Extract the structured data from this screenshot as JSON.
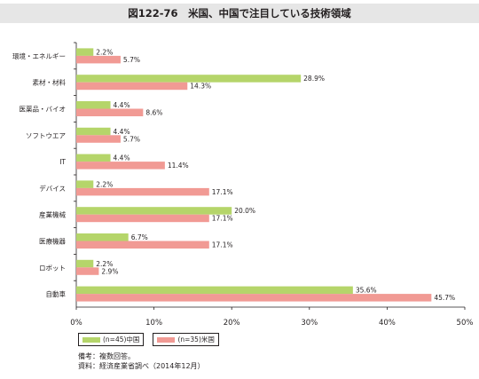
{
  "title": "図122-76　米国、中国で注目している技術領域",
  "chart_data": {
    "type": "bar",
    "orientation": "horizontal",
    "categories": [
      "環境・エネルギー",
      "素材・材料",
      "医薬品・バイオ",
      "ソフトウエア",
      "IT",
      "デバイス",
      "産業機械",
      "医療機器",
      "ロボット",
      "自動車"
    ],
    "series": [
      {
        "name": "(n=45)中国",
        "color": "#b5d56a",
        "values": [
          2.2,
          28.9,
          4.4,
          4.4,
          4.4,
          2.2,
          20.0,
          6.7,
          2.2,
          35.6
        ],
        "labels": [
          "2.2%",
          "28.9%",
          "4.4%",
          "4.4%",
          "4.4%",
          "2.2%",
          "20.0%",
          "6.7%",
          "2.2%",
          "35.6%"
        ]
      },
      {
        "name": "(n=35)米国",
        "color": "#f19a94",
        "values": [
          5.7,
          14.3,
          8.6,
          5.7,
          11.4,
          17.1,
          17.1,
          17.1,
          2.9,
          45.7
        ],
        "labels": [
          "5.7%",
          "14.3%",
          "8.6%",
          "5.7%",
          "11.4%",
          "17.1%",
          "17.1%",
          "17.1%",
          "2.9%",
          "45.7%"
        ]
      }
    ],
    "xlim": [
      0,
      50
    ],
    "xticks": [
      "0%",
      "10%",
      "20%",
      "30%",
      "40%",
      "50%"
    ],
    "grid": false,
    "legend_position": "bottom-left"
  },
  "notes": [
    "備考：複数回答。",
    "資料：経済産業省調べ（2014年12月）"
  ]
}
